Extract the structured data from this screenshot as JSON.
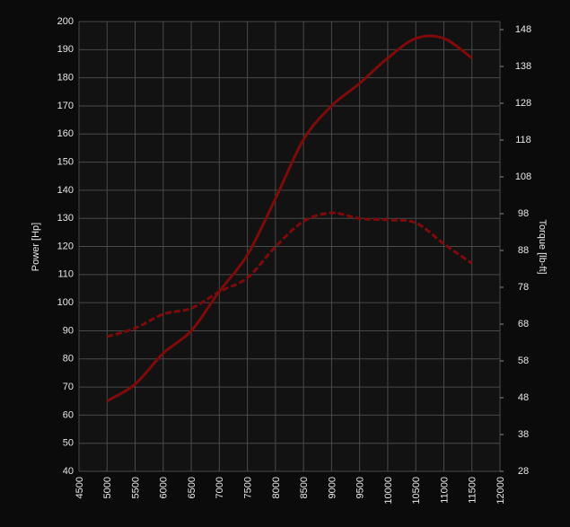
{
  "chart_data": {
    "type": "line",
    "ylabel": "Power [Hp]",
    "y2label": "Torque [lb-ft]",
    "x": [
      5000,
      5500,
      6000,
      6500,
      7000,
      7500,
      8000,
      8500,
      9000,
      9500,
      10000,
      10500,
      11000,
      11500
    ],
    "series": [
      {
        "name": "Power",
        "color": "#800a0a",
        "dash": false,
        "values": [
          65,
          71,
          82,
          90,
          104,
          117,
          137,
          158,
          170,
          178,
          187,
          194,
          194,
          187
        ]
      },
      {
        "name": "Torque",
        "color": "#800a0a",
        "dash": true,
        "axis": "y2",
        "values": [
          64.6,
          66.9,
          70.7,
          72.3,
          76.8,
          80.6,
          89,
          95.9,
          98.2,
          96.7,
          96.3,
          95.5,
          89.8,
          84.5
        ]
      }
    ],
    "xlim": [
      4500,
      12000
    ],
    "xticks": [
      4500,
      5000,
      5500,
      6000,
      6500,
      7000,
      7500,
      8000,
      8500,
      9000,
      9500,
      10000,
      10500,
      11000,
      11500,
      12000
    ],
    "ylim": [
      40,
      200
    ],
    "yticks": [
      40,
      50,
      60,
      70,
      80,
      90,
      100,
      110,
      120,
      130,
      140,
      150,
      160,
      170,
      180,
      190,
      200
    ],
    "y2lim": [
      28,
      150.2
    ],
    "y2ticks": [
      28,
      38,
      48,
      58,
      68,
      78,
      88,
      98,
      108,
      118,
      128,
      138,
      148
    ],
    "grid": true
  }
}
